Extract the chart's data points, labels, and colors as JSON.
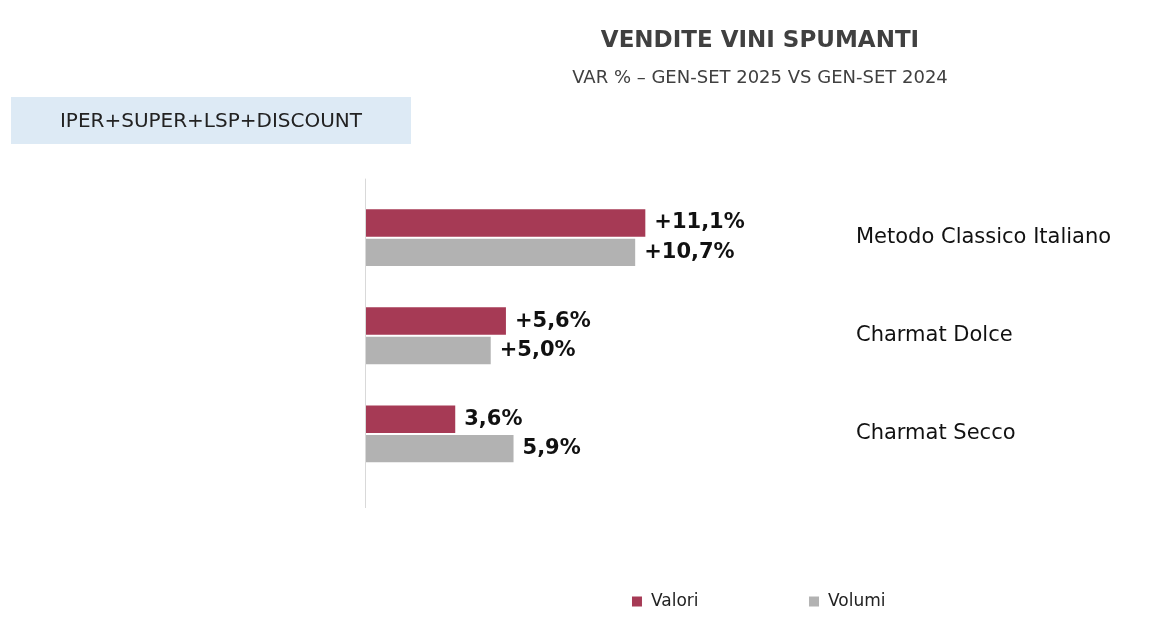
{
  "chart_data": {
    "type": "bar",
    "orientation": "horizontal",
    "title": "VENDITE VINI SPUMANTI",
    "subtitle": "VAR % – GEN-SET 2025 VS GEN-SET 2024",
    "annotations": [
      "IPER+SUPER+LSP+DISCOUNT"
    ],
    "categories": [
      "Metodo Classico Italiano",
      "Charmat Dolce",
      "Charmat Secco"
    ],
    "series": [
      {
        "name": "Valori",
        "color": "#a63a55",
        "values": [
          11.1,
          5.6,
          3.6
        ],
        "value_labels": [
          "+11,1%",
          "+5,6%",
          "3,6%"
        ]
      },
      {
        "name": "Volumi",
        "color": "#b2b2b2",
        "values": [
          10.7,
          5.0,
          5.9
        ],
        "value_labels": [
          "+10,7%",
          "+5,0%",
          "5,9%"
        ]
      }
    ],
    "legend": "bottom",
    "tick_labels": "y"
  }
}
